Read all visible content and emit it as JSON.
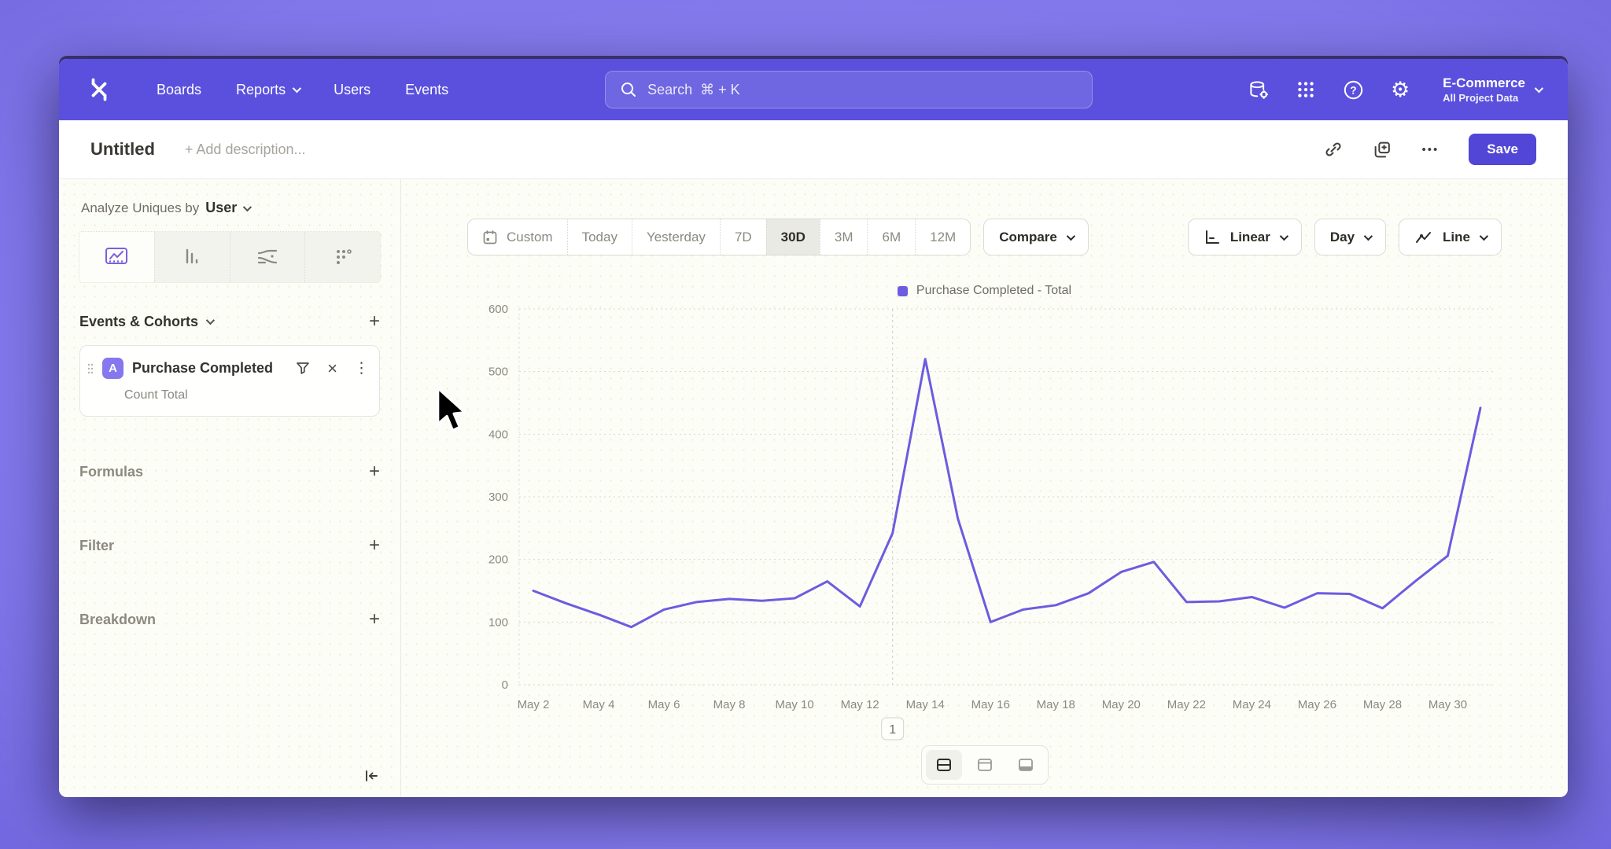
{
  "icons": {
    "gear": "⚙",
    "kebab": "⋮",
    "close": "×",
    "more": "•••",
    "plus": "+",
    "help": "?"
  },
  "topnav": {
    "items": [
      {
        "label": "Boards",
        "chevron": false
      },
      {
        "label": "Reports",
        "chevron": true
      },
      {
        "label": "Users",
        "chevron": false
      },
      {
        "label": "Events",
        "chevron": false
      }
    ],
    "search": {
      "placeholder": "Search  ⌘ + K"
    },
    "project": {
      "name": "E-Commerce",
      "scope": "All Project Data"
    }
  },
  "report_header": {
    "title": "Untitled",
    "description_placeholder": "+ Add description...",
    "save_label": "Save"
  },
  "sidebar": {
    "analyze_prefix": "Analyze Uniques by",
    "analyze_value": "User",
    "sections": {
      "events": "Events & Cohorts",
      "formulas": "Formulas",
      "filter": "Filter",
      "breakdown": "Breakdown"
    },
    "event_card": {
      "badge": "A",
      "title": "Purchase Completed",
      "subtitle": "Count Total"
    }
  },
  "toolbar": {
    "ranges": [
      "Custom",
      "Today",
      "Yesterday",
      "7D",
      "30D",
      "3M",
      "6M",
      "12M"
    ],
    "active_range": "30D",
    "compare_label": "Compare",
    "scale_label": "Linear",
    "interval_label": "Day",
    "chart_type_label": "Line"
  },
  "chart_data": {
    "type": "line",
    "legend": [
      {
        "label": "Purchase Completed - Total",
        "color": "#6b5ce0"
      }
    ],
    "legend_position": "top-center",
    "grid": "dotted",
    "x": [
      "May 2",
      "May 3",
      "May 4",
      "May 5",
      "May 6",
      "May 7",
      "May 8",
      "May 9",
      "May 10",
      "May 11",
      "May 12",
      "May 13",
      "May 14",
      "May 15",
      "May 16",
      "May 17",
      "May 18",
      "May 19",
      "May 20",
      "May 21",
      "May 22",
      "May 23",
      "May 24",
      "May 25",
      "May 26",
      "May 27",
      "May 28",
      "May 29",
      "May 30",
      "May 31"
    ],
    "x_label_step": 2,
    "values": [
      150,
      130,
      112,
      92,
      120,
      132,
      137,
      134,
      138,
      165,
      125,
      242,
      520,
      265,
      100,
      120,
      127,
      146,
      180,
      196,
      132,
      133,
      140,
      123,
      146,
      145,
      122,
      165,
      206,
      442
    ],
    "y_ticks": [
      0,
      100,
      200,
      300,
      400,
      500,
      600
    ],
    "ylim": [
      0,
      600
    ],
    "annotation": {
      "index": 11,
      "label": "1"
    }
  }
}
